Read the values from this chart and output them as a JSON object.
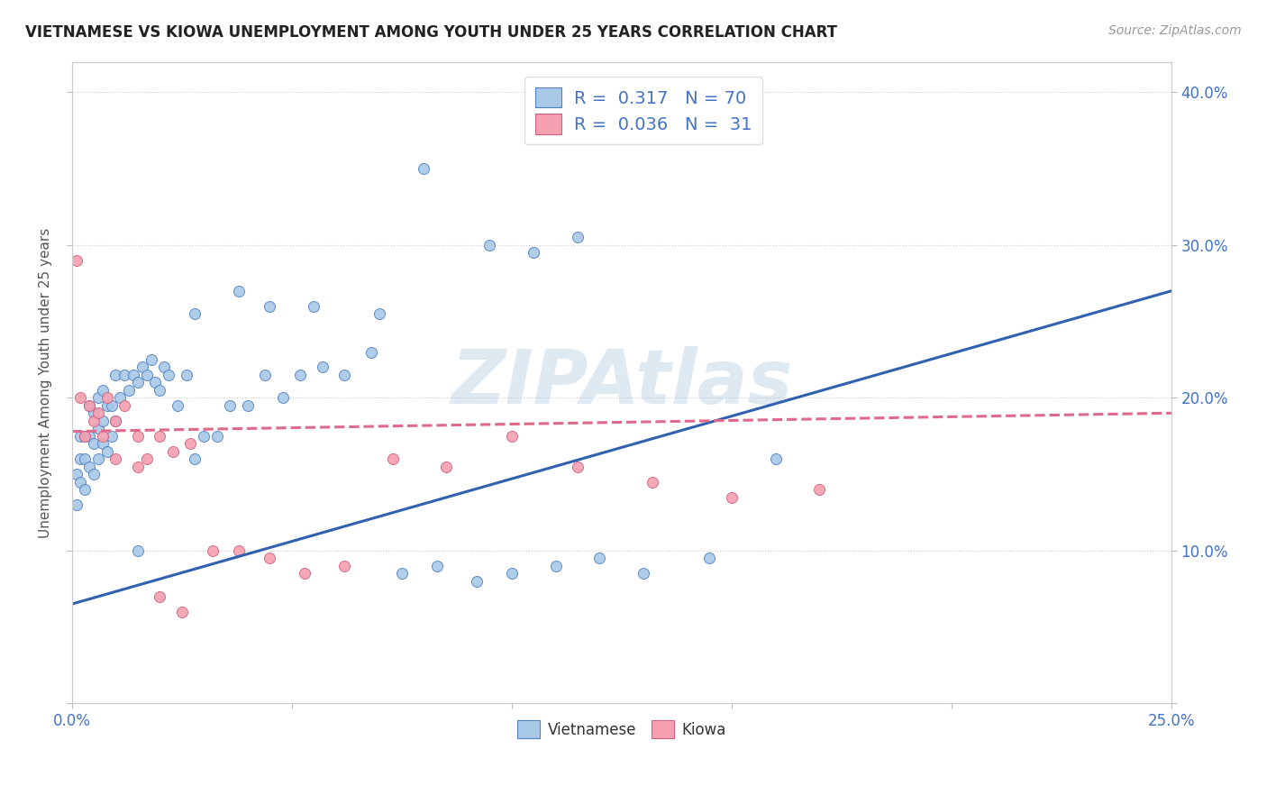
{
  "title": "VIETNAMESE VS KIOWA UNEMPLOYMENT AMONG YOUTH UNDER 25 YEARS CORRELATION CHART",
  "source": "Source: ZipAtlas.com",
  "ylabel": "Unemployment Among Youth under 25 years",
  "xlim": [
    0.0,
    0.25
  ],
  "ylim": [
    0.0,
    0.42
  ],
  "xtick_pos": [
    0.0,
    0.05,
    0.1,
    0.15,
    0.2,
    0.25
  ],
  "xticklabels": [
    "0.0%",
    "",
    "",
    "",
    "",
    "25.0%"
  ],
  "ytick_pos": [
    0.0,
    0.1,
    0.2,
    0.3,
    0.4
  ],
  "yticklabels": [
    "",
    "10.0%",
    "20.0%",
    "30.0%",
    "40.0%"
  ],
  "blue_R": 0.317,
  "blue_N": 70,
  "pink_R": 0.036,
  "pink_N": 31,
  "blue_color": "#a8c8e8",
  "pink_color": "#f4a0b0",
  "blue_edge_color": "#5080c0",
  "pink_edge_color": "#d06080",
  "blue_line_color": "#3060b0",
  "pink_line_color": "#e06888",
  "watermark": "ZIPAtlas",
  "watermark_color": "#b0c8e0",
  "legend_blue_label": "Vietnamese",
  "legend_pink_label": "Kiowa",
  "background_color": "#ffffff",
  "legend_text_color": "#4472c4",
  "blue_x": [
    0.001,
    0.001,
    0.002,
    0.002,
    0.002,
    0.003,
    0.003,
    0.003,
    0.004,
    0.004,
    0.004,
    0.005,
    0.005,
    0.005,
    0.006,
    0.006,
    0.006,
    0.007,
    0.007,
    0.007,
    0.008,
    0.008,
    0.009,
    0.009,
    0.01,
    0.01,
    0.011,
    0.012,
    0.013,
    0.014,
    0.015,
    0.016,
    0.017,
    0.018,
    0.019,
    0.02,
    0.021,
    0.022,
    0.024,
    0.026,
    0.028,
    0.03,
    0.033,
    0.036,
    0.04,
    0.044,
    0.048,
    0.052,
    0.057,
    0.062,
    0.068,
    0.075,
    0.083,
    0.092,
    0.1,
    0.11,
    0.12,
    0.13,
    0.145,
    0.16,
    0.105,
    0.115,
    0.08,
    0.095,
    0.07,
    0.055,
    0.045,
    0.038,
    0.028,
    0.015
  ],
  "blue_y": [
    0.13,
    0.15,
    0.145,
    0.16,
    0.175,
    0.14,
    0.16,
    0.175,
    0.155,
    0.175,
    0.195,
    0.15,
    0.17,
    0.19,
    0.16,
    0.18,
    0.2,
    0.17,
    0.185,
    0.205,
    0.165,
    0.195,
    0.175,
    0.195,
    0.185,
    0.215,
    0.2,
    0.215,
    0.205,
    0.215,
    0.21,
    0.22,
    0.215,
    0.225,
    0.21,
    0.205,
    0.22,
    0.215,
    0.195,
    0.215,
    0.16,
    0.175,
    0.175,
    0.195,
    0.195,
    0.215,
    0.2,
    0.215,
    0.22,
    0.215,
    0.23,
    0.085,
    0.09,
    0.08,
    0.085,
    0.09,
    0.095,
    0.085,
    0.095,
    0.16,
    0.295,
    0.305,
    0.35,
    0.3,
    0.255,
    0.26,
    0.26,
    0.27,
    0.255,
    0.1
  ],
  "pink_x": [
    0.001,
    0.002,
    0.003,
    0.004,
    0.005,
    0.006,
    0.007,
    0.008,
    0.01,
    0.012,
    0.015,
    0.017,
    0.02,
    0.023,
    0.027,
    0.032,
    0.038,
    0.045,
    0.053,
    0.062,
    0.073,
    0.085,
    0.1,
    0.115,
    0.132,
    0.15,
    0.17,
    0.01,
    0.015,
    0.02,
    0.025
  ],
  "pink_y": [
    0.29,
    0.2,
    0.175,
    0.195,
    0.185,
    0.19,
    0.175,
    0.2,
    0.185,
    0.195,
    0.175,
    0.16,
    0.175,
    0.165,
    0.17,
    0.1,
    0.1,
    0.095,
    0.085,
    0.09,
    0.16,
    0.155,
    0.175,
    0.155,
    0.145,
    0.135,
    0.14,
    0.16,
    0.155,
    0.07,
    0.06
  ],
  "blue_line_x0": 0.0,
  "blue_line_y0": 0.065,
  "blue_line_x1": 0.25,
  "blue_line_y1": 0.27,
  "pink_line_x0": 0.0,
  "pink_line_y0": 0.178,
  "pink_line_x1": 0.25,
  "pink_line_y1": 0.19
}
